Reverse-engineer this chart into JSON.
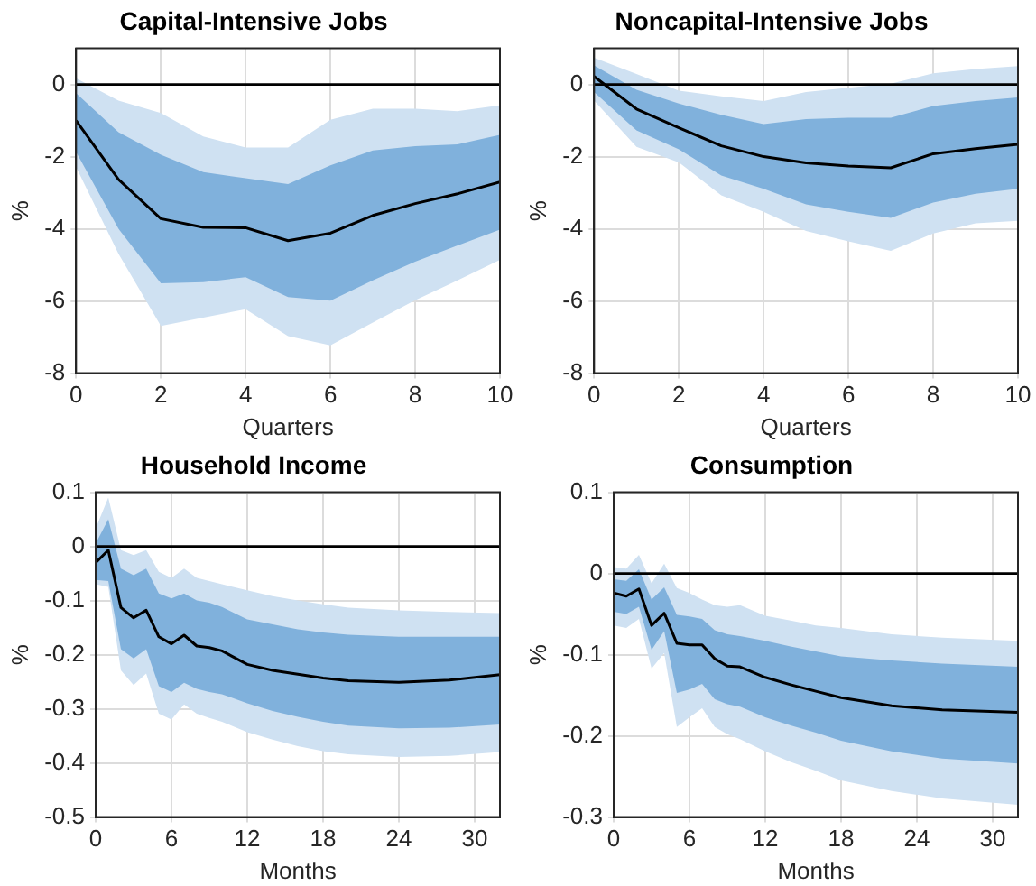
{
  "chart_data": [
    {
      "type": "line",
      "title": "Capital-Intensive Jobs",
      "xlabel": "Quarters",
      "ylabel": "%",
      "xlim": [
        0,
        10
      ],
      "xticks": [
        0,
        2,
        4,
        6,
        8,
        10
      ],
      "ylim": [
        -8,
        1
      ],
      "yticks": [
        -8,
        -6,
        -4,
        -2,
        0
      ],
      "grid": true,
      "legend": false,
      "marker": "none",
      "line_style": "solid",
      "ref_lines": [
        {
          "axis": "y",
          "value": 0,
          "color": "#000000"
        }
      ],
      "x": [
        0,
        1,
        2,
        3,
        4,
        5,
        6,
        7,
        8,
        9,
        10
      ],
      "series": [
        {
          "color": "#000000",
          "values": [
            -1.0,
            -2.63,
            -3.72,
            -3.96,
            -3.97,
            -4.33,
            -4.12,
            -3.63,
            -3.3,
            -3.03,
            -2.7
          ],
          "lower": [
            -1.87,
            -4.0,
            -5.51,
            -5.48,
            -5.34,
            -5.89,
            -5.99,
            -5.43,
            -4.91,
            -4.46,
            -4.02
          ],
          "upper": [
            -0.24,
            -1.32,
            -1.95,
            -2.43,
            -2.6,
            -2.76,
            -2.24,
            -1.83,
            -1.71,
            -1.66,
            -1.4
          ]
        },
        {
          "type": "area",
          "color": "#cfe1f2",
          "values": [
            null,
            null,
            null,
            null,
            null,
            null,
            null,
            null,
            null,
            null,
            null
          ],
          "lower": [
            -2.29,
            -4.69,
            -6.69,
            -6.46,
            -6.23,
            -6.97,
            -7.23,
            -6.6,
            -5.98,
            -5.43,
            -4.86
          ],
          "upper": [
            0.17,
            -0.45,
            -0.79,
            -1.44,
            -1.75,
            -1.75,
            -0.98,
            -0.67,
            -0.67,
            -0.74,
            -0.58
          ]
        }
      ]
    },
    {
      "type": "line",
      "title": "Noncapital-Intensive Jobs",
      "xlabel": "Quarters",
      "ylabel": "%",
      "xlim": [
        0,
        10
      ],
      "xticks": [
        0,
        2,
        4,
        6,
        8,
        10
      ],
      "ylim": [
        -8,
        1
      ],
      "yticks": [
        -8,
        -6,
        -4,
        -2,
        0
      ],
      "grid": true,
      "legend": false,
      "marker": "none",
      "line_style": "solid",
      "ref_lines": [
        {
          "axis": "y",
          "value": 0,
          "color": "#000000"
        }
      ],
      "x": [
        0,
        1,
        2,
        3,
        4,
        5,
        6,
        7,
        8,
        9,
        10
      ],
      "series": [
        {
          "color": "#000000",
          "values": [
            0.22,
            -0.68,
            -1.2,
            -1.7,
            -2.0,
            -2.17,
            -2.26,
            -2.31,
            -1.92,
            -1.78,
            -1.66
          ],
          "lower": [
            -0.21,
            -1.27,
            -1.8,
            -2.52,
            -2.89,
            -3.32,
            -3.53,
            -3.7,
            -3.27,
            -3.03,
            -2.89
          ],
          "upper": [
            0.53,
            -0.15,
            -0.53,
            -0.84,
            -1.1,
            -0.96,
            -0.92,
            -0.92,
            -0.6,
            -0.46,
            -0.36
          ]
        },
        {
          "type": "area",
          "color": "#cfe1f2",
          "values": [
            null,
            null,
            null,
            null,
            null,
            null,
            null,
            null,
            null,
            null,
            null
          ],
          "lower": [
            -0.45,
            -1.73,
            -2.16,
            -3.07,
            -3.53,
            -4.06,
            -4.35,
            -4.61,
            -4.13,
            -3.85,
            -3.78
          ],
          "upper": [
            0.74,
            0.29,
            -0.17,
            -0.33,
            -0.46,
            -0.21,
            -0.09,
            0.02,
            0.31,
            0.43,
            0.51
          ]
        }
      ]
    },
    {
      "type": "line",
      "title": "Household Income",
      "xlabel": "Months",
      "ylabel": "%",
      "xlim": [
        0,
        32
      ],
      "xticks": [
        0,
        6,
        12,
        18,
        24,
        30
      ],
      "ylim": [
        -0.5,
        0.1
      ],
      "yticks": [
        -0.5,
        -0.4,
        -0.3,
        -0.2,
        -0.1,
        0,
        0.1
      ],
      "grid": true,
      "legend": false,
      "marker": "none",
      "line_style": "solid",
      "ref_lines": [
        {
          "axis": "y",
          "value": 0,
          "color": "#000000"
        }
      ],
      "x": [
        0,
        1,
        2,
        3,
        4,
        5,
        6,
        7,
        8,
        9,
        10,
        12,
        14,
        16,
        18,
        20,
        24,
        28,
        32
      ],
      "series": [
        {
          "color": "#000000",
          "values": [
            -0.03,
            -0.007,
            -0.113,
            -0.132,
            -0.118,
            -0.167,
            -0.18,
            -0.164,
            -0.184,
            -0.187,
            -0.193,
            -0.218,
            -0.229,
            -0.236,
            -0.243,
            -0.248,
            -0.251,
            -0.247,
            -0.237
          ],
          "lower": [
            -0.062,
            -0.064,
            -0.19,
            -0.207,
            -0.19,
            -0.258,
            -0.269,
            -0.252,
            -0.263,
            -0.269,
            -0.273,
            -0.29,
            -0.304,
            -0.315,
            -0.324,
            -0.331,
            -0.336,
            -0.335,
            -0.329
          ],
          "upper": [
            0.005,
            0.05,
            -0.041,
            -0.053,
            -0.041,
            -0.087,
            -0.096,
            -0.087,
            -0.1,
            -0.104,
            -0.112,
            -0.135,
            -0.144,
            -0.153,
            -0.159,
            -0.163,
            -0.167,
            -0.167,
            -0.167
          ]
        },
        {
          "type": "area",
          "color": "#cfe1f2",
          "values": [
            null,
            null,
            null,
            null,
            null,
            null,
            null,
            null,
            null,
            null,
            null,
            null,
            null,
            null,
            null,
            null,
            null,
            null,
            null
          ],
          "lower": [
            -0.07,
            -0.075,
            -0.229,
            -0.256,
            -0.235,
            -0.309,
            -0.32,
            -0.292,
            -0.309,
            -0.317,
            -0.324,
            -0.343,
            -0.357,
            -0.369,
            -0.378,
            -0.384,
            -0.389,
            -0.387,
            -0.38
          ],
          "upper": [
            0.033,
            0.09,
            -0.007,
            -0.016,
            -0.007,
            -0.047,
            -0.058,
            -0.041,
            -0.058,
            -0.064,
            -0.07,
            -0.081,
            -0.092,
            -0.1,
            -0.107,
            -0.113,
            -0.118,
            -0.121,
            -0.123
          ]
        }
      ]
    },
    {
      "type": "line",
      "title": "Consumption",
      "xlabel": "Months",
      "ylabel": "%",
      "xlim": [
        0,
        32
      ],
      "xticks": [
        0,
        6,
        12,
        18,
        24,
        30
      ],
      "ylim": [
        -0.3,
        0.1
      ],
      "yticks": [
        -0.3,
        -0.2,
        -0.1,
        0,
        0.1
      ],
      "grid": true,
      "legend": false,
      "marker": "none",
      "line_style": "solid",
      "ref_lines": [
        {
          "axis": "y",
          "value": 0,
          "color": "#000000"
        }
      ],
      "x": [
        0,
        1,
        2,
        3,
        4,
        5,
        6,
        7,
        8,
        9,
        10,
        12,
        14,
        16,
        18,
        22,
        26,
        32
      ],
      "series": [
        {
          "color": "#000000",
          "values": [
            -0.024,
            -0.028,
            -0.019,
            -0.064,
            -0.049,
            -0.086,
            -0.088,
            -0.088,
            -0.105,
            -0.114,
            -0.115,
            -0.128,
            -0.137,
            -0.145,
            -0.153,
            -0.163,
            -0.168,
            -0.171
          ],
          "lower": [
            -0.047,
            -0.05,
            -0.041,
            -0.094,
            -0.071,
            -0.147,
            -0.143,
            -0.136,
            -0.155,
            -0.161,
            -0.164,
            -0.177,
            -0.187,
            -0.196,
            -0.206,
            -0.219,
            -0.228,
            -0.234
          ],
          "upper": [
            -0.007,
            -0.009,
            0.005,
            -0.032,
            -0.017,
            -0.051,
            -0.053,
            -0.056,
            -0.07,
            -0.075,
            -0.077,
            -0.083,
            -0.09,
            -0.096,
            -0.102,
            -0.107,
            -0.111,
            -0.115
          ]
        },
        {
          "type": "area",
          "color": "#cfe1f2",
          "values": [
            null,
            null,
            null,
            null,
            null,
            null,
            null,
            null,
            null,
            null,
            null,
            null,
            null,
            null,
            null,
            null,
            null,
            null
          ],
          "lower": [
            -0.064,
            -0.067,
            -0.056,
            -0.117,
            -0.098,
            -0.189,
            -0.177,
            -0.166,
            -0.189,
            -0.198,
            -0.204,
            -0.219,
            -0.232,
            -0.243,
            -0.255,
            -0.268,
            -0.277,
            -0.285
          ],
          "upper": [
            0.008,
            0.006,
            0.023,
            -0.012,
            0.012,
            -0.018,
            -0.024,
            -0.032,
            -0.039,
            -0.041,
            -0.039,
            -0.052,
            -0.058,
            -0.064,
            -0.067,
            -0.075,
            -0.079,
            -0.083
          ]
        }
      ]
    }
  ]
}
